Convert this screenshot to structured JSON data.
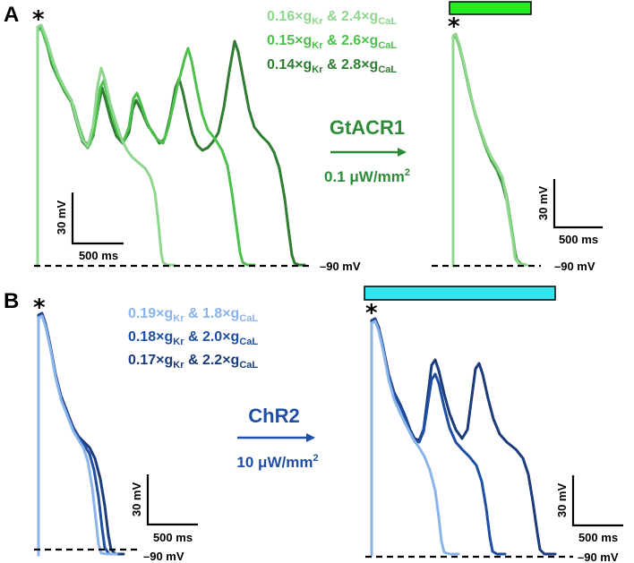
{
  "panels": {
    "A": {
      "letter": "A",
      "star": "*",
      "legend": [
        {
          "g1": "0.16×g",
          "sub1": "Kr",
          "mid": " & 2.4×g",
          "sub2": "CaL",
          "color": "#8fd68f"
        },
        {
          "g1": "0.15×g",
          "sub1": "Kr",
          "mid": " & 2.6×g",
          "sub2": "CaL",
          "color": "#4cbf4c"
        },
        {
          "g1": "0.14×g",
          "sub1": "Kr",
          "mid": " & 2.8×g",
          "sub2": "CaL",
          "color": "#2e7d32"
        }
      ],
      "opsin": "GtACR1",
      "power": "0.1 μW/mm",
      "power_sup": "2",
      "opsin_color": "#2e8b3a",
      "light_bar_color": "#22ee22",
      "scale_mv": "30 mV",
      "scale_ms": "500 ms",
      "rest_label": "–90 mV"
    },
    "B": {
      "letter": "B",
      "star": "*",
      "legend": [
        {
          "g1": "0.19×g",
          "sub1": "Kr",
          "mid": " & 1.8×g",
          "sub2": "CaL",
          "color": "#8ab4ea"
        },
        {
          "g1": "0.18×g",
          "sub1": "Kr",
          "mid": " & 2.0×g",
          "sub2": "CaL",
          "color": "#1f4ea3"
        },
        {
          "g1": "0.17×g",
          "sub1": "Kr",
          "mid": " & 2.2×g",
          "sub2": "CaL",
          "color": "#1b3b7a"
        }
      ],
      "opsin": "ChR2",
      "power": "10 μW/mm",
      "power_sup": "2",
      "opsin_color": "#1f4ea3",
      "light_bar_color": "#33e3ee",
      "scale_mv": "30 mV",
      "scale_ms": "500 ms",
      "rest_label": "–90 mV"
    }
  }
}
